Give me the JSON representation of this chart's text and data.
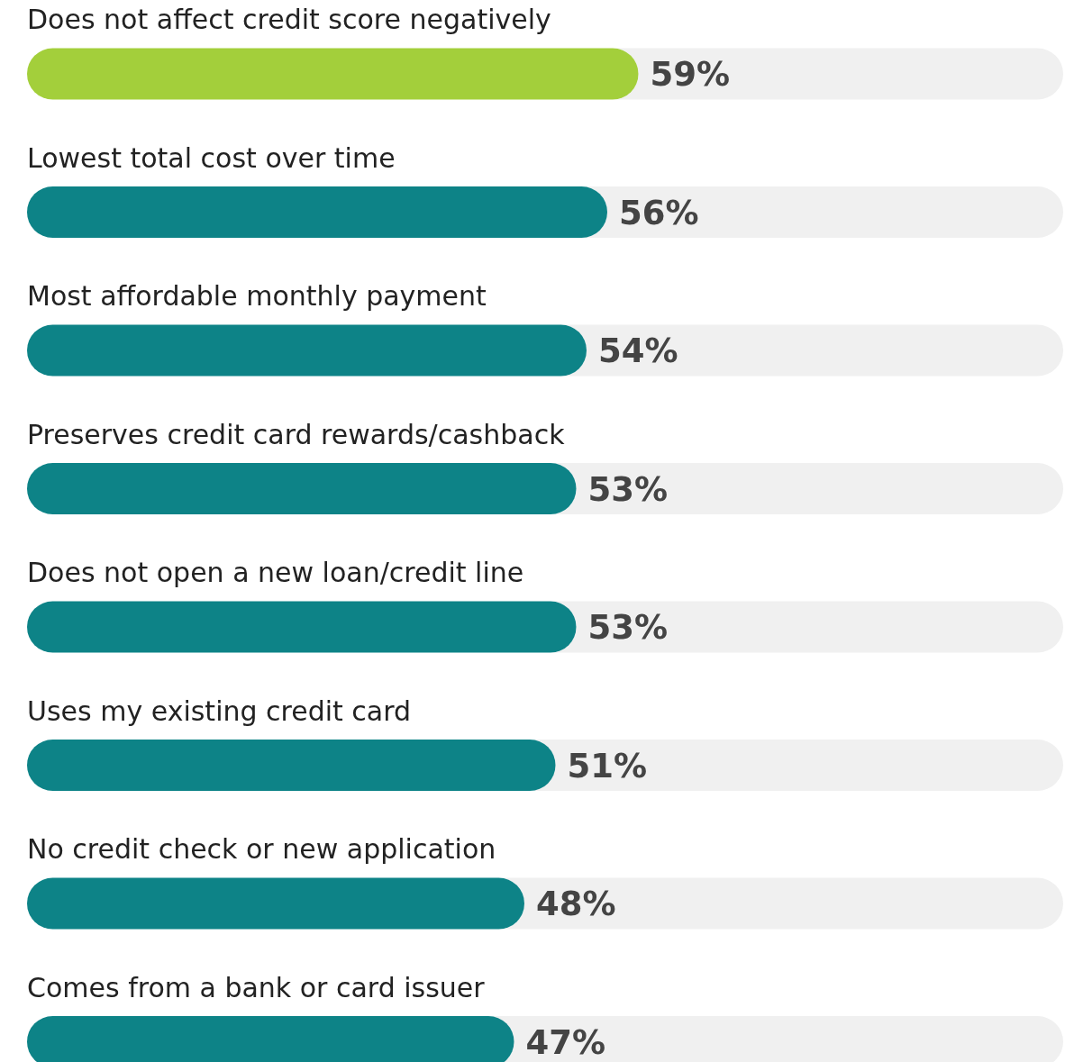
{
  "chart_data": {
    "type": "bar",
    "orientation": "horizontal",
    "categories": [
      "Does not affect credit score negatively",
      "Lowest total cost over time",
      "Most affordable monthly payment",
      "Preserves credit card rewards/cashback",
      "Does not open a new loan/credit line",
      "Uses my existing credit card",
      "No credit check or new application",
      "Comes from a bank or card issuer"
    ],
    "values": [
      59,
      56,
      54,
      53,
      53,
      51,
      48,
      47
    ],
    "colors": [
      "#a3cf3b",
      "#0d8387",
      "#0d8387",
      "#0d8387",
      "#0d8387",
      "#0d8387",
      "#0d8387",
      "#0d8387"
    ],
    "value_labels": [
      "59%",
      "56%",
      "54%",
      "53%",
      "53%",
      "51%",
      "48%",
      "47%"
    ],
    "xlim": [
      0,
      100
    ]
  }
}
